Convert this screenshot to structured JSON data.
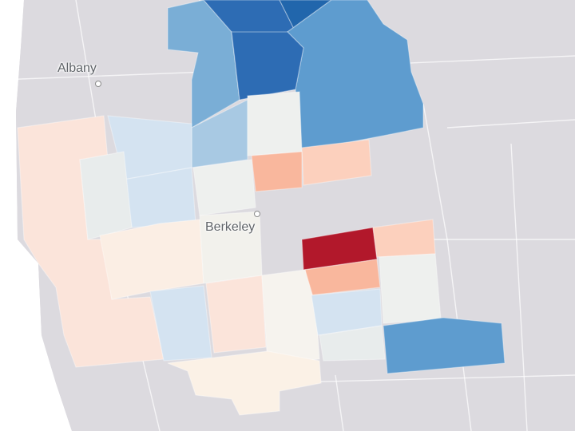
{
  "places": {
    "albany": {
      "label": "Albany"
    },
    "berkeley": {
      "label": "Berkeley"
    }
  },
  "colors": {
    "water": "#ffffff",
    "land": "#dcdadf",
    "deep_blue": "#2166ac",
    "mid_blue": "#4d8fc7",
    "light_blue": "#a8c9e3",
    "pale_blue": "#d4e3f1",
    "neutral": "#eef0ee",
    "pale_orange": "#fbe4da",
    "light_orange": "#fcd0bd",
    "orange": "#f9b79d",
    "deep_red": "#b2182b"
  }
}
